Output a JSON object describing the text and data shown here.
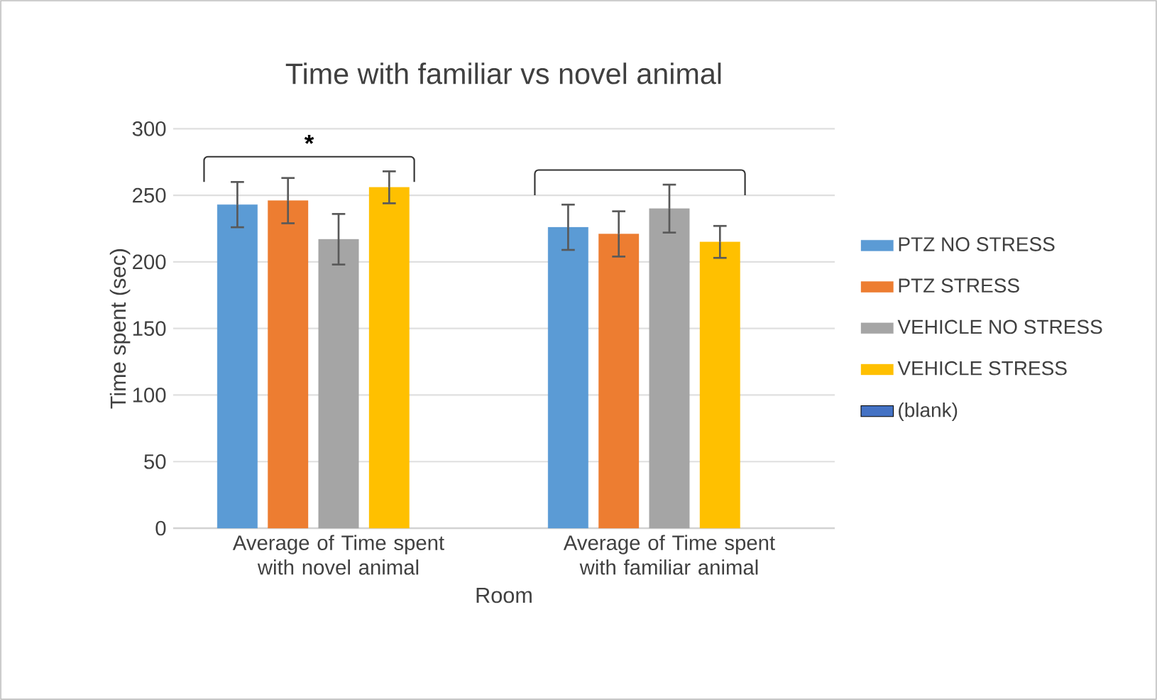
{
  "chart_data": {
    "type": "bar",
    "title": "Time with familiar vs novel animal",
    "xlabel": "Room",
    "ylabel": "Time spent (sec)",
    "categories": [
      "Average of Time spent with novel animal",
      "Average of Time spent with familiar animal"
    ],
    "series": [
      {
        "name": "PTZ NO STRESS",
        "color": "#5b9bd5",
        "values": [
          243,
          226
        ],
        "errors": [
          17,
          17
        ]
      },
      {
        "name": "PTZ STRESS",
        "color": "#ed7d31",
        "values": [
          246,
          221
        ],
        "errors": [
          17,
          17
        ]
      },
      {
        "name": "VEHICLE NO STRESS",
        "color": "#a5a5a5",
        "values": [
          217,
          240
        ],
        "errors": [
          19,
          18
        ]
      },
      {
        "name": "VEHICLE STRESS",
        "color": "#ffc000",
        "values": [
          256,
          215
        ],
        "errors": [
          12,
          12
        ]
      },
      {
        "name": "(blank)",
        "color": "#4472c4",
        "values": [
          null,
          null
        ]
      }
    ],
    "ylim": [
      0,
      300
    ],
    "yticks": [
      0,
      50,
      100,
      150,
      200,
      250,
      300
    ],
    "grid": "y",
    "legend": "right",
    "annotations": [
      "*"
    ]
  }
}
